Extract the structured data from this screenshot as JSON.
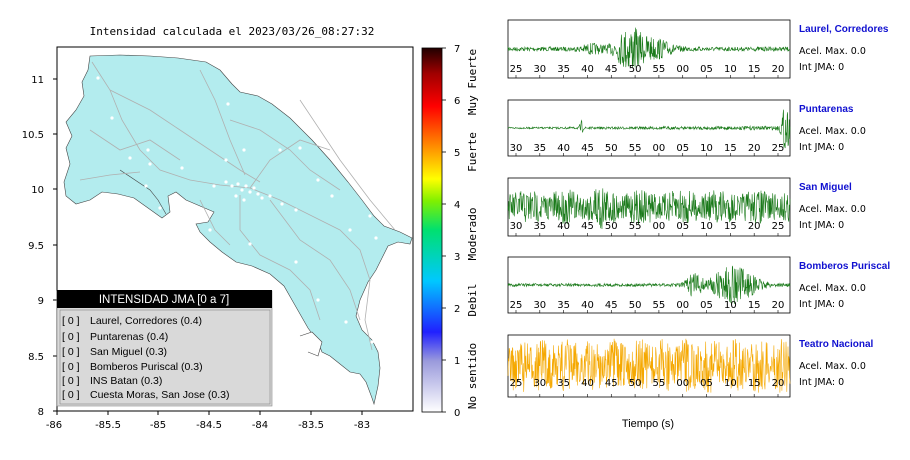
{
  "map": {
    "title": "Intensidad calculada el 2023/03/26_08:27:32",
    "x_ticks": [
      "-86",
      "-85.5",
      "-85",
      "-84.5",
      "-84",
      "-83.5",
      "-83"
    ],
    "y_ticks": [
      "11",
      "10.5",
      "10",
      "9.5",
      "9",
      "8.5",
      "8"
    ],
    "land_color": "#b3ecee"
  },
  "legend": {
    "title": "INTENSIDAD JMA [0 a 7]",
    "items": [
      {
        "value": "[ 0 ]",
        "station": "Laurel, Corredores (0.4)"
      },
      {
        "value": "[ 0 ]",
        "station": "Puntarenas (0.4)"
      },
      {
        "value": "[ 0 ]",
        "station": "San Miguel (0.3)"
      },
      {
        "value": "[ 0 ]",
        "station": "Bomberos Puriscal (0.3)"
      },
      {
        "value": "[ 0 ]",
        "station": "INS Batan (0.3)"
      },
      {
        "value": "[ 0 ]",
        "station": "Cuesta Moras, San Jose (0.3)"
      }
    ]
  },
  "colorbar": {
    "ticks": [
      "7",
      "6",
      "5",
      "4",
      "3",
      "2",
      "1",
      "0"
    ],
    "labels": [
      "Muy Fuerte",
      "Fuerte",
      "Moderado",
      "Debil",
      "No sentido"
    ]
  },
  "waveforms": {
    "xlabel": "Tiempo (s)",
    "panels": [
      {
        "name": "Laurel, Corredores",
        "accel": "Acel. Max. 0.0",
        "jma": "Int JMA: 0",
        "ticks": [
          "25",
          "30",
          "35",
          "40",
          "45",
          "50",
          "55",
          "00",
          "05",
          "10",
          "15",
          "20"
        ],
        "color": "#1a7a1a"
      },
      {
        "name": "Puntarenas",
        "accel": "Acel. Max. 0.0",
        "jma": "Int JMA: 0",
        "ticks": [
          "30",
          "35",
          "40",
          "45",
          "50",
          "55",
          "00",
          "05",
          "10",
          "15",
          "20",
          "25"
        ],
        "color": "#1a7a1a"
      },
      {
        "name": "San Miguel",
        "accel": "Acel. Max. 0.0",
        "jma": "Int JMA: 0",
        "ticks": [
          "30",
          "35",
          "40",
          "45",
          "50",
          "55",
          "00",
          "05",
          "10",
          "15",
          "20",
          "25"
        ],
        "color": "#1a7a1a"
      },
      {
        "name": "Bomberos Puriscal",
        "accel": "Acel. Max. 0.0",
        "jma": "Int JMA: 0",
        "ticks": [
          "25",
          "30",
          "35",
          "40",
          "45",
          "50",
          "55",
          "00",
          "05",
          "10",
          "15",
          "20"
        ],
        "color": "#1a7a1a"
      },
      {
        "name": "Teatro Nacional",
        "accel": "Acel. Max. 0.0",
        "jma": "Int JMA: 0",
        "ticks": [
          "25",
          "30",
          "35",
          "40",
          "45",
          "50",
          "55",
          "00",
          "05",
          "10",
          "15",
          "20"
        ],
        "color": "#f5a800"
      }
    ]
  },
  "chart_data": {
    "type": "scatter",
    "title": "Intensidad calculada el 2023/03/26_08:27:32",
    "xlabel": "",
    "ylabel": "",
    "xlim": [
      -86,
      -82.5
    ],
    "ylim": [
      8,
      11.3
    ],
    "colorbar_range": [
      0,
      7
    ],
    "legend_title": "INTENSIDAD JMA [0 a 7]",
    "stations": [
      {
        "name": "Laurel, Corredores",
        "intensity": 0.4
      },
      {
        "name": "Puntarenas",
        "intensity": 0.4
      },
      {
        "name": "San Miguel",
        "intensity": 0.3
      },
      {
        "name": "Bomberos Puriscal",
        "intensity": 0.3
      },
      {
        "name": "INS Batan",
        "intensity": 0.3
      },
      {
        "name": "Cuesta Moras, San Jose",
        "intensity": 0.3
      }
    ],
    "waveform_xlabel": "Tiempo (s)",
    "grid": false
  }
}
